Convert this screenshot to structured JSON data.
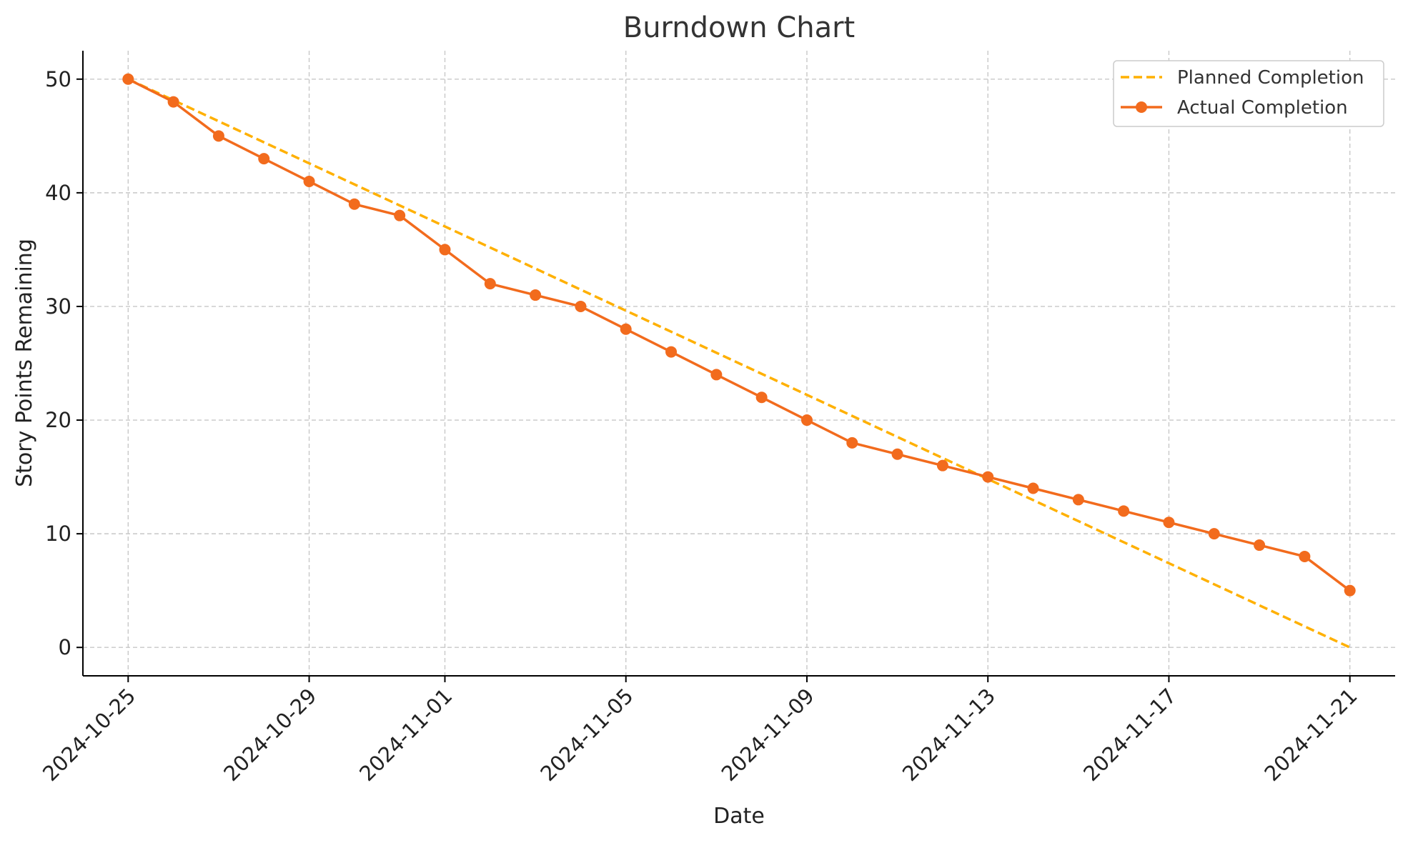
{
  "chart_data": {
    "type": "line",
    "title": "Burndown Chart",
    "xlabel": "Date",
    "ylabel": "Story Points Remaining",
    "x_start": "2024-10-25",
    "x_end": "2024-11-21",
    "xlim": [
      "2024-10-24",
      "2024-11-22"
    ],
    "ylim": [
      -2.5,
      52.5
    ],
    "x_ticks": [
      "2024-10-25",
      "2024-10-29",
      "2024-11-01",
      "2024-11-05",
      "2024-11-09",
      "2024-11-13",
      "2024-11-17",
      "2024-11-21"
    ],
    "y_ticks": [
      0,
      10,
      20,
      30,
      40,
      50
    ],
    "grid": true,
    "legend_position": "top-right",
    "series": [
      {
        "name": "Planned Completion",
        "style": "dashed",
        "color": "#ffb000",
        "x": [
          "2024-10-25",
          "2024-11-21"
        ],
        "values": [
          50,
          0
        ]
      },
      {
        "name": "Actual Completion",
        "style": "solid-markers",
        "color": "#f26b1d",
        "x": [
          "2024-10-25",
          "2024-10-26",
          "2024-10-27",
          "2024-10-28",
          "2024-10-29",
          "2024-10-30",
          "2024-10-31",
          "2024-11-01",
          "2024-11-02",
          "2024-11-03",
          "2024-11-04",
          "2024-11-05",
          "2024-11-06",
          "2024-11-07",
          "2024-11-08",
          "2024-11-09",
          "2024-11-10",
          "2024-11-11",
          "2024-11-12",
          "2024-11-13",
          "2024-11-14",
          "2024-11-15",
          "2024-11-16",
          "2024-11-17",
          "2024-11-18",
          "2024-11-19",
          "2024-11-20",
          "2024-11-21"
        ],
        "values": [
          50,
          48,
          45,
          43,
          41,
          39,
          38,
          35,
          32,
          31,
          30,
          28,
          26,
          24,
          22,
          20,
          18,
          17,
          16,
          15,
          14,
          13,
          12,
          11,
          10,
          9,
          8,
          5
        ]
      }
    ]
  }
}
